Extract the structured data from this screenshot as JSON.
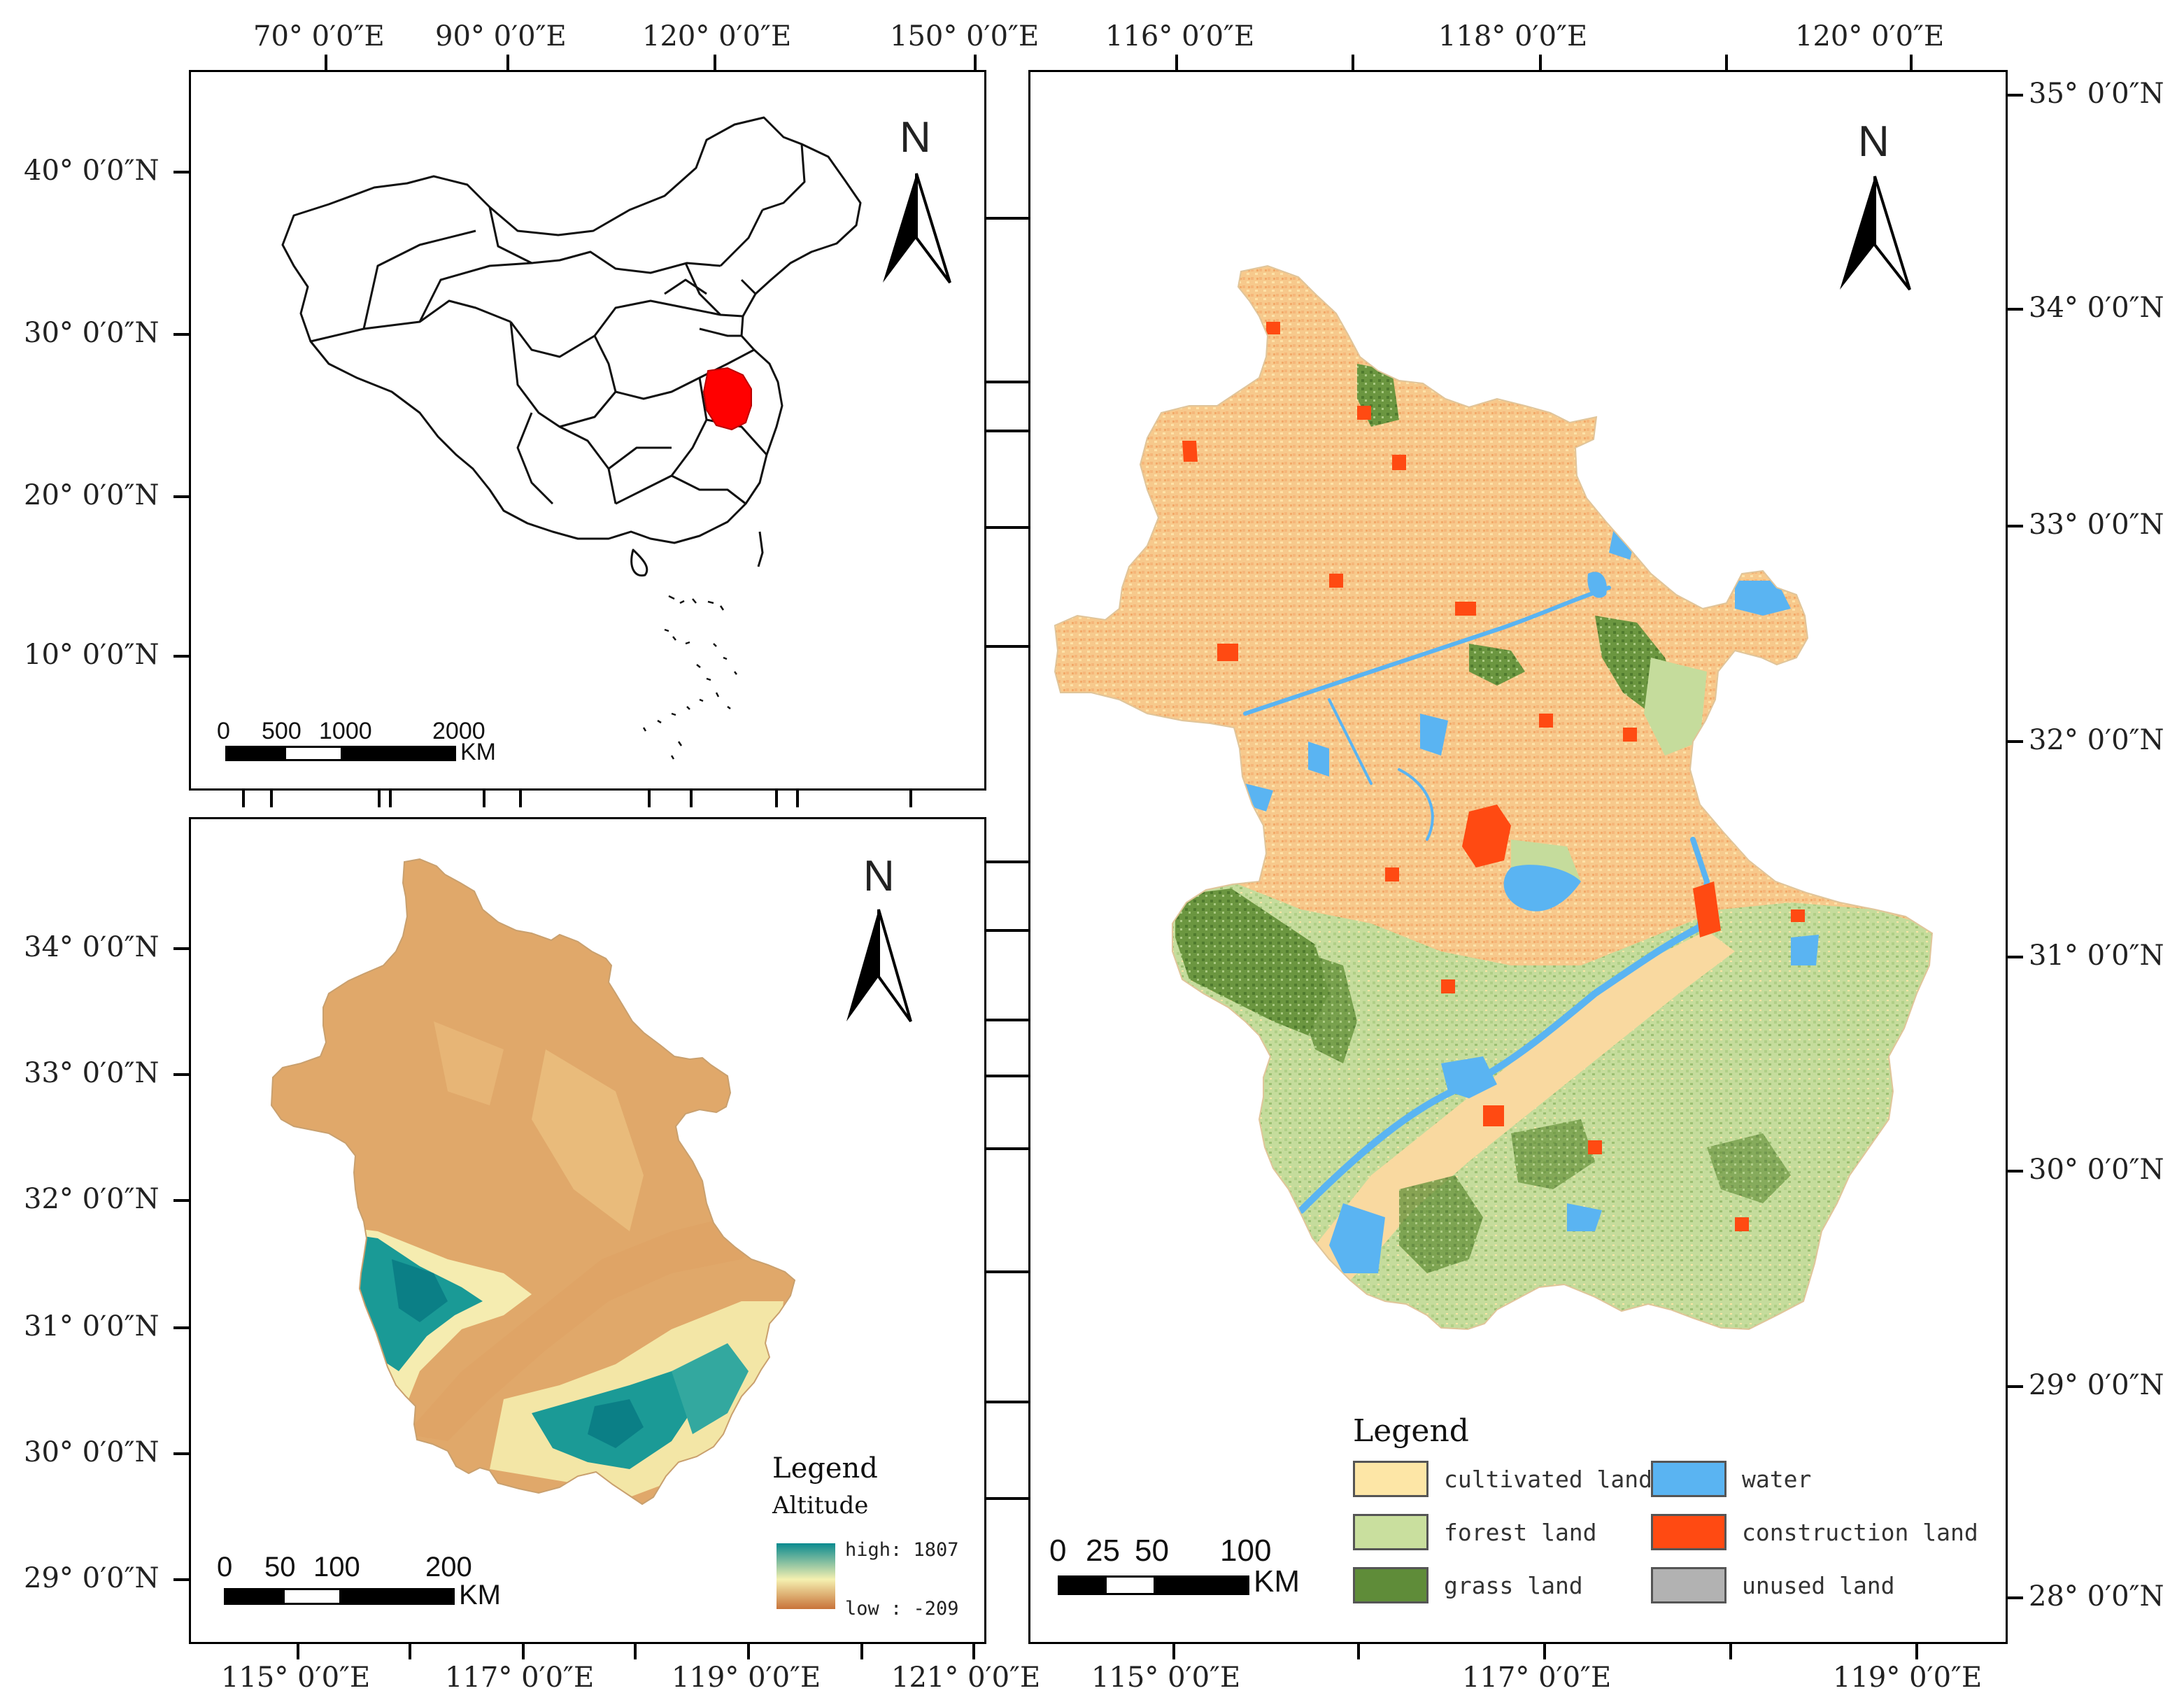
{
  "inset_map": {
    "top_ticks": [
      "70° 0′0″E",
      "90° 0′0″E",
      "120° 0′0″E",
      "150° 0′0″E"
    ],
    "left_ticks": [
      "40° 0′0″N",
      "30° 0′0″N",
      "20° 0′0″N",
      "10° 0′0″N"
    ],
    "north": "N",
    "scale": {
      "labels": [
        "0",
        "500",
        "1000",
        "2000"
      ],
      "unit": "KM"
    },
    "highlight_color": "#ff0000"
  },
  "elevation_map": {
    "left_ticks": [
      "34° 0′0″N",
      "33° 0′0″N",
      "32° 0′0″N",
      "31° 0′0″N",
      "30° 0′0″N",
      "29° 0′0″N"
    ],
    "bottom_ticks": [
      "115° 0′0″E",
      "117° 0′0″E",
      "119° 0′0″E",
      "121° 0′0″E"
    ],
    "north": "N",
    "scale": {
      "labels": [
        "0",
        "50",
        "100",
        "200"
      ],
      "unit": "KM"
    },
    "legend": {
      "title": "Legend",
      "subtitle": "Altitude",
      "high": "high: 1807",
      "low": "low : -209",
      "ramp": [
        "#0a8a8f",
        "#f5f0b0",
        "#c8733a"
      ]
    }
  },
  "landuse_map": {
    "top_ticks": [
      "116° 0′0″E",
      "118° 0′0″E",
      "120° 0′0″E"
    ],
    "right_ticks": [
      "35° 0′0″N",
      "34° 0′0″N",
      "33° 0′0″N",
      "32° 0′0″N",
      "31° 0′0″N",
      "30° 0′0″N",
      "29° 0′0″N",
      "28° 0′0″N"
    ],
    "bottom_ticks": [
      "115° 0′0″E",
      "117° 0′0″E",
      "119° 0′0″E"
    ],
    "north": "N",
    "scale": {
      "labels": [
        "0",
        "25",
        "50",
        "100"
      ],
      "unit": "KM"
    },
    "legend": {
      "title": "Legend",
      "items": [
        {
          "label": "cultivated land",
          "color": "#fde6a6"
        },
        {
          "label": "water",
          "color": "#5ab4f2"
        },
        {
          "label": "forest land",
          "color": "#c9df9e"
        },
        {
          "label": "construction land",
          "color": "#ff4a12"
        },
        {
          "label": "grass land",
          "color": "#5f8c39"
        },
        {
          "label": "unused land",
          "color": "#b2b2b2"
        }
      ]
    }
  }
}
